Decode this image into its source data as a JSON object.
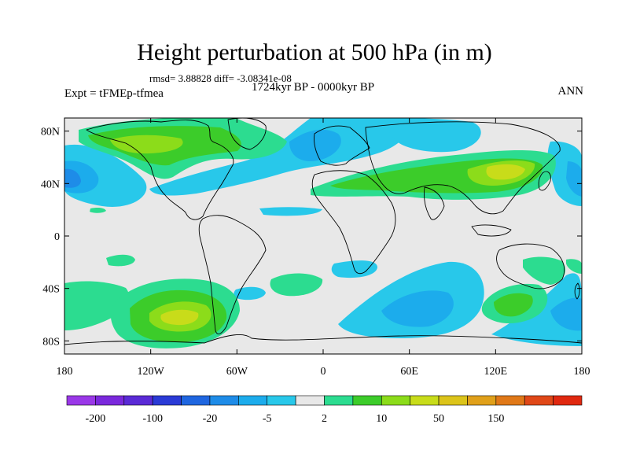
{
  "title": "Height perturbation at 500 hPa (in m)",
  "stats": "rmsd= 3.88828 diff= -3.08341e-08",
  "expt_label": "Expt = tFMEp-tfmea",
  "period": "1724kyr BP - 0000kyr BP",
  "season": "ANN",
  "map": {
    "lon_range": [
      -180,
      180
    ],
    "lat_range": [
      -90,
      90
    ],
    "lon_ticks": [
      {
        "value": -180,
        "label": "180"
      },
      {
        "value": -120,
        "label": "120W"
      },
      {
        "value": -60,
        "label": "60W"
      },
      {
        "value": 0,
        "label": "0"
      },
      {
        "value": 60,
        "label": "60E"
      },
      {
        "value": 120,
        "label": "120E"
      },
      {
        "value": 180,
        "label": "180"
      }
    ],
    "lat_ticks": [
      {
        "value": 80,
        "label": "80N"
      },
      {
        "value": 40,
        "label": "40N"
      },
      {
        "value": 0,
        "label": "0"
      },
      {
        "value": -40,
        "label": "40S"
      },
      {
        "value": -80,
        "label": "80S"
      }
    ],
    "background_color": "#e8e8e8"
  },
  "colorbar": {
    "colors": [
      "#9a38e8",
      "#7a28dc",
      "#5a2ad6",
      "#2a3ad6",
      "#1f66e0",
      "#1e8ce8",
      "#1cacec",
      "#28c8ea",
      "#e8e8e8",
      "#2cdc90",
      "#3ccc2a",
      "#8cdc1a",
      "#c8dc1a",
      "#dcc41a",
      "#e0a01a",
      "#e07818",
      "#e04818",
      "#e02810"
    ],
    "labels": [
      {
        "after_index": 0,
        "text": "-200"
      },
      {
        "after_index": 2,
        "text": "-100"
      },
      {
        "after_index": 4,
        "text": "-20"
      },
      {
        "after_index": 6,
        "text": "-5"
      },
      {
        "after_index": 8,
        "text": "2"
      },
      {
        "after_index": 10,
        "text": "10"
      },
      {
        "after_index": 12,
        "text": "50"
      },
      {
        "after_index": 14,
        "text": "150"
      }
    ]
  }
}
